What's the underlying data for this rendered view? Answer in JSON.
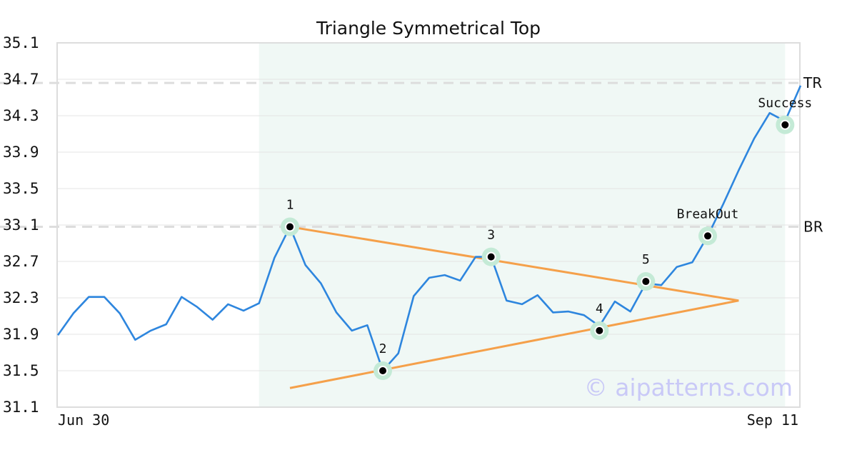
{
  "chart_data": {
    "type": "line",
    "title": "Triangle Symmetrical Top",
    "xlabel": "",
    "ylabel": "",
    "ylim": [
      31.1,
      35.1
    ],
    "yticks": [
      31.1,
      31.5,
      31.9,
      32.3,
      32.7,
      33.1,
      33.5,
      33.9,
      34.3,
      34.7,
      35.1
    ],
    "ytick_labels": [
      "31.1",
      "31.5",
      "31.9",
      "32.3",
      "32.7",
      "33.1",
      "33.5",
      "33.9",
      "34.3",
      "34.7",
      "35.1"
    ],
    "x_start_label": "Jun 30",
    "x_end_label": "Sep 11",
    "grid": true,
    "colors": {
      "price": "#2e86de",
      "trendline": "#f5a04a",
      "highlight": "#e6f4ee",
      "marker_halo": "#c4ead6",
      "reference": "#dddddd",
      "axis": "#dddddd"
    },
    "series": [
      {
        "values": [
          31.89,
          32.13,
          32.31,
          32.31,
          32.13,
          31.84,
          31.94,
          32.01,
          32.31,
          32.2,
          32.06,
          32.23,
          32.16,
          32.24,
          32.74,
          33.08,
          32.66,
          32.46,
          32.14,
          31.94,
          32.0,
          31.5,
          31.69,
          32.32,
          32.52,
          32.55,
          32.49,
          32.75,
          32.75,
          32.27,
          32.23,
          32.33,
          32.14,
          32.15,
          32.11,
          31.99,
          32.26,
          32.15,
          32.46,
          32.44,
          32.64,
          32.69,
          32.98,
          33.33,
          33.7,
          34.05,
          34.33,
          34.24,
          34.63
        ]
      }
    ],
    "highlight_range": [
      13,
      47
    ],
    "trendlines": [
      {
        "from": [
          15,
          33.08
        ],
        "to": [
          44,
          32.27
        ]
      },
      {
        "from": [
          15,
          31.31
        ],
        "to": [
          44,
          32.27
        ]
      }
    ],
    "reference_lines": [
      {
        "label": "TR",
        "value": 34.66
      },
      {
        "label": "BR",
        "value": 33.08
      }
    ],
    "points": [
      {
        "label": "1",
        "x": 15,
        "y": 33.08
      },
      {
        "label": "2",
        "x": 21,
        "y": 31.5
      },
      {
        "label": "3",
        "x": 28,
        "y": 32.75
      },
      {
        "label": "4",
        "x": 35,
        "y": 31.94
      },
      {
        "label": "5",
        "x": 38,
        "y": 32.48
      },
      {
        "label": "BreakOut",
        "x": 42,
        "y": 32.98
      },
      {
        "label": "Success",
        "x": 47,
        "y": 34.2
      }
    ],
    "watermark": "© aipatterns.com"
  }
}
